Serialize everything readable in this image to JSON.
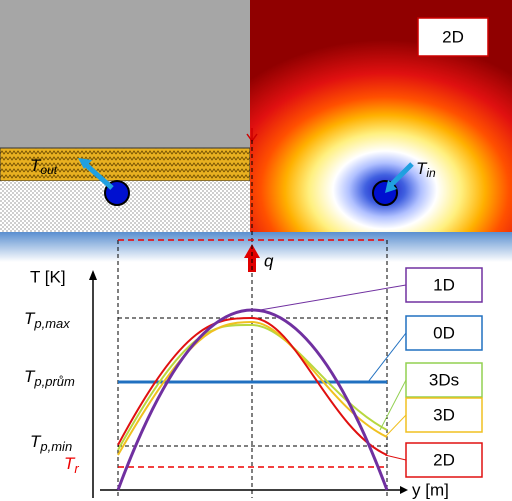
{
  "panel": {
    "badge": "2D",
    "t_out": {
      "main": "T",
      "sub": "out"
    },
    "t_in": {
      "main": "T",
      "sub": "in"
    },
    "q": "q"
  },
  "plot": {
    "y_axis": "T [K]",
    "x_axis": "y [m]",
    "t_max": {
      "main": "T",
      "sub": "p,max"
    },
    "t_avg": {
      "main": "T",
      "sub": "p,prům"
    },
    "t_min": {
      "main": "T",
      "sub": "p,min"
    },
    "t_r": {
      "main": "T",
      "sub": "r"
    },
    "legend": [
      "1D",
      "0D",
      "3Ds",
      "3D",
      "2D"
    ]
  }
}
